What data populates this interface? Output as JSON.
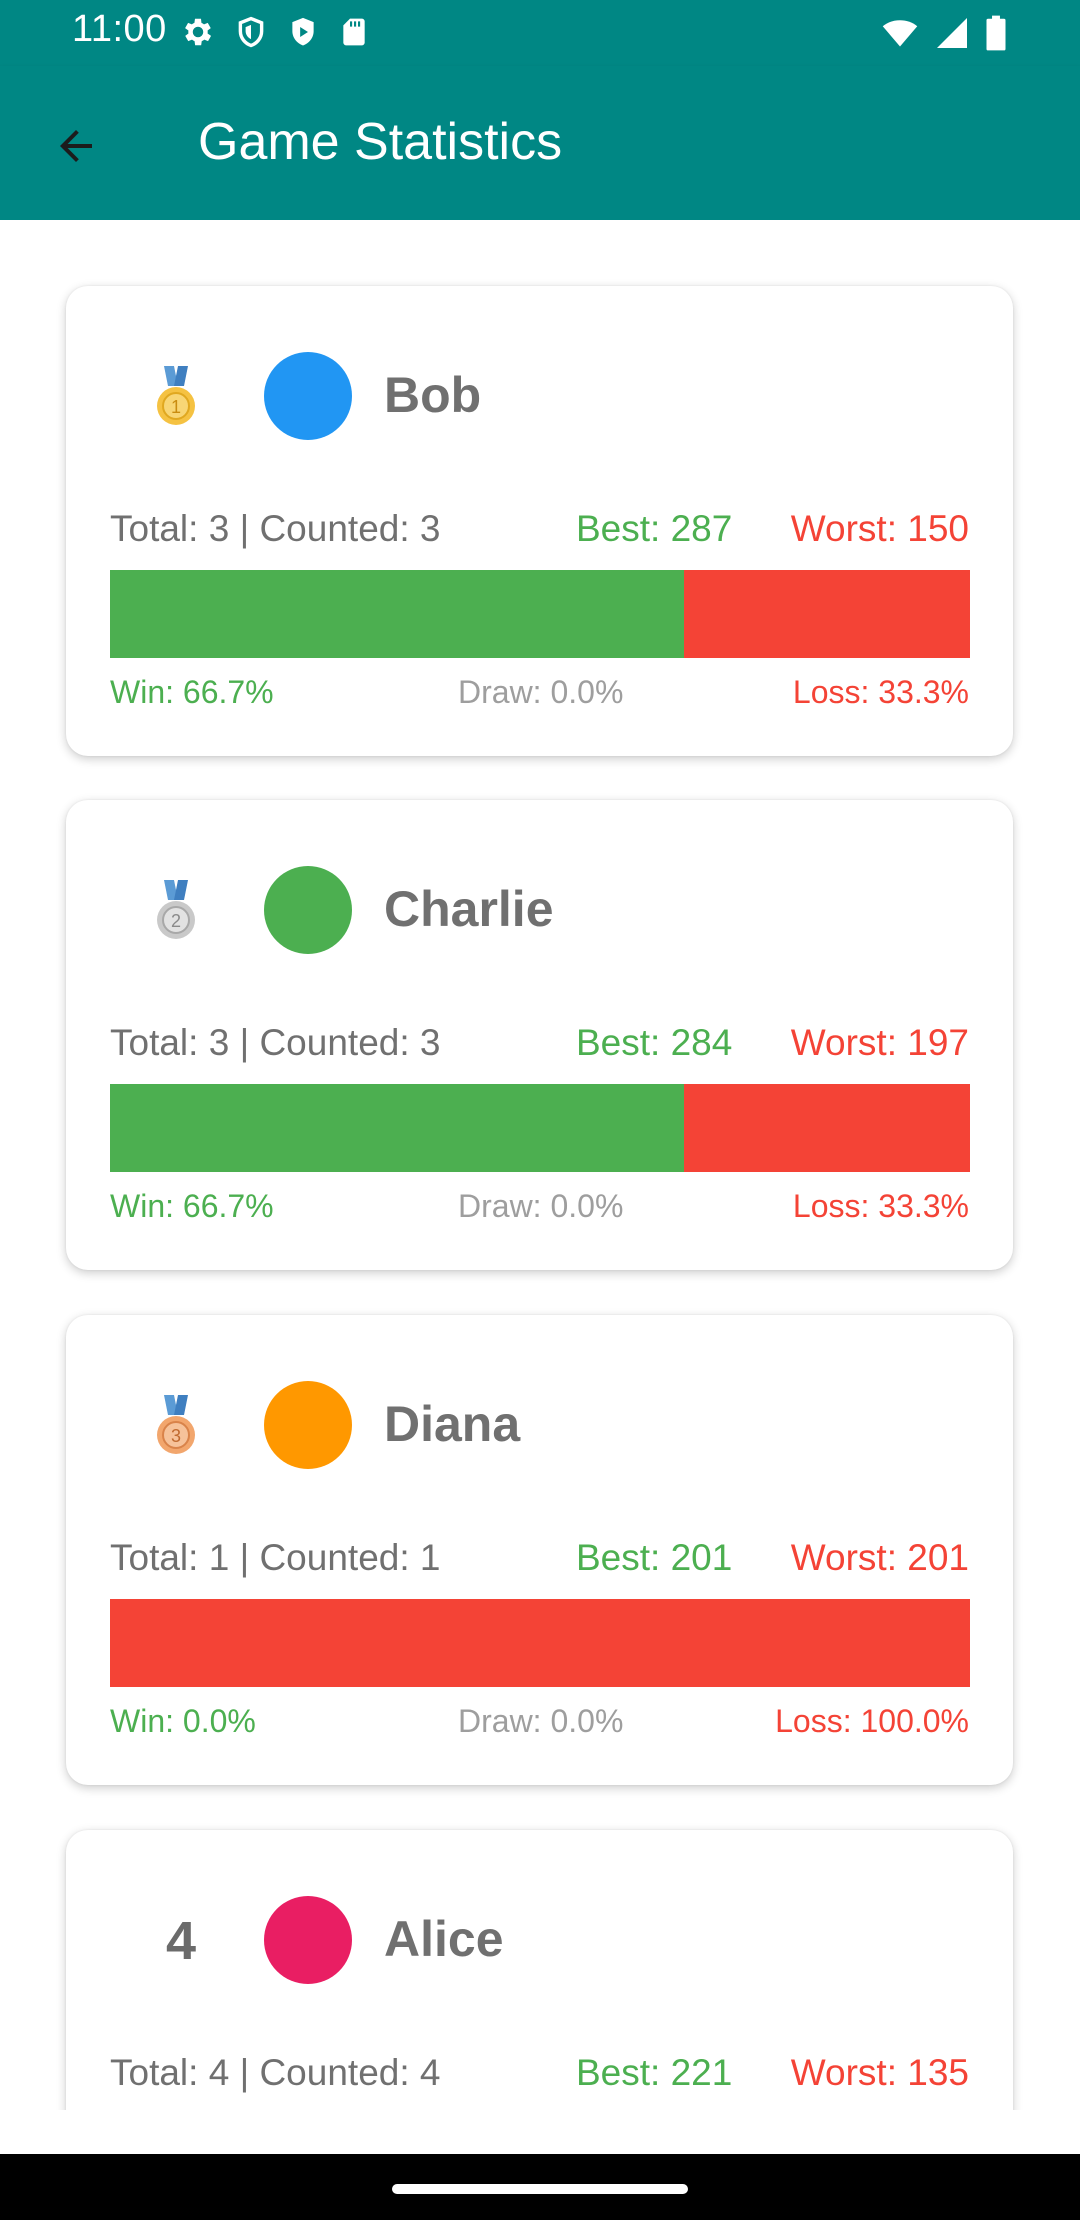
{
  "status_bar": {
    "time": "11:00",
    "left_icons": [
      "settings-icon",
      "shield-icon",
      "play-protect-icon",
      "sd-card-icon"
    ],
    "right_icons": [
      "wifi-icon",
      "signal-icon",
      "battery-icon"
    ]
  },
  "app_bar": {
    "title": "Game Statistics",
    "back_icon": "arrow-back-icon"
  },
  "colors": {
    "primary": "#008784",
    "win": "#4caf50",
    "loss": "#f44336",
    "draw": "#9e9e9e",
    "text_muted": "#707070"
  },
  "players": [
    {
      "rank": 1,
      "rank_display": "medal",
      "medal": "gold-medal-icon",
      "name": "Bob",
      "avatar_color": "#2196f3",
      "totals": "Total: 3 | Counted: 3",
      "best": "Best: 287",
      "worst": "Worst: 150",
      "win_fraction": 0.667,
      "draw_fraction": 0.0,
      "loss_fraction": 0.333,
      "win_label": "Win: 66.7%",
      "draw_label": "Draw: 0.0%",
      "loss_label": "Loss: 33.3%"
    },
    {
      "rank": 2,
      "rank_display": "medal",
      "medal": "silver-medal-icon",
      "name": "Charlie",
      "avatar_color": "#4caf50",
      "totals": "Total: 3 | Counted: 3",
      "best": "Best: 284",
      "worst": "Worst: 197",
      "win_fraction": 0.667,
      "draw_fraction": 0.0,
      "loss_fraction": 0.333,
      "win_label": "Win: 66.7%",
      "draw_label": "Draw: 0.0%",
      "loss_label": "Loss: 33.3%"
    },
    {
      "rank": 3,
      "rank_display": "medal",
      "medal": "bronze-medal-icon",
      "name": "Diana",
      "avatar_color": "#ff9800",
      "totals": "Total: 1 | Counted: 1",
      "best": "Best: 201",
      "worst": "Worst: 201",
      "win_fraction": 0.0,
      "draw_fraction": 0.0,
      "loss_fraction": 1.0,
      "win_label": "Win: 0.0%",
      "draw_label": "Draw: 0.0%",
      "loss_label": "Loss: 100.0%"
    },
    {
      "rank": 4,
      "rank_display": "number",
      "rank_label": "4",
      "name": "Alice",
      "avatar_color": "#e91e63",
      "totals": "Total: 4 | Counted: 4",
      "best": "Best: 221",
      "worst": "Worst: 135"
    }
  ]
}
